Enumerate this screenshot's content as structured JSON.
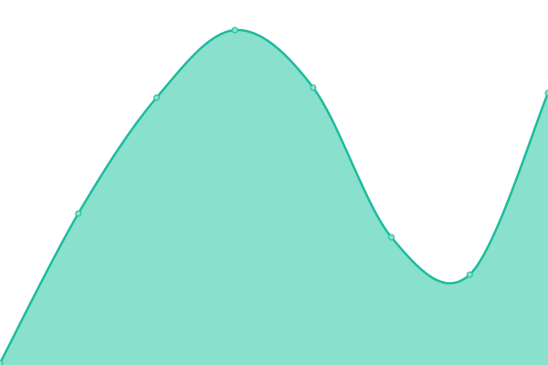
{
  "chart_data": {
    "type": "area",
    "categories": [
      null,
      null,
      null,
      null,
      null,
      null,
      null,
      null
    ],
    "values": [
      2,
      166,
      293,
      367,
      304,
      140,
      99,
      298
    ],
    "ylim": [
      0,
      400
    ],
    "color": "#1abc9c",
    "fill": "#88e0cd"
  }
}
